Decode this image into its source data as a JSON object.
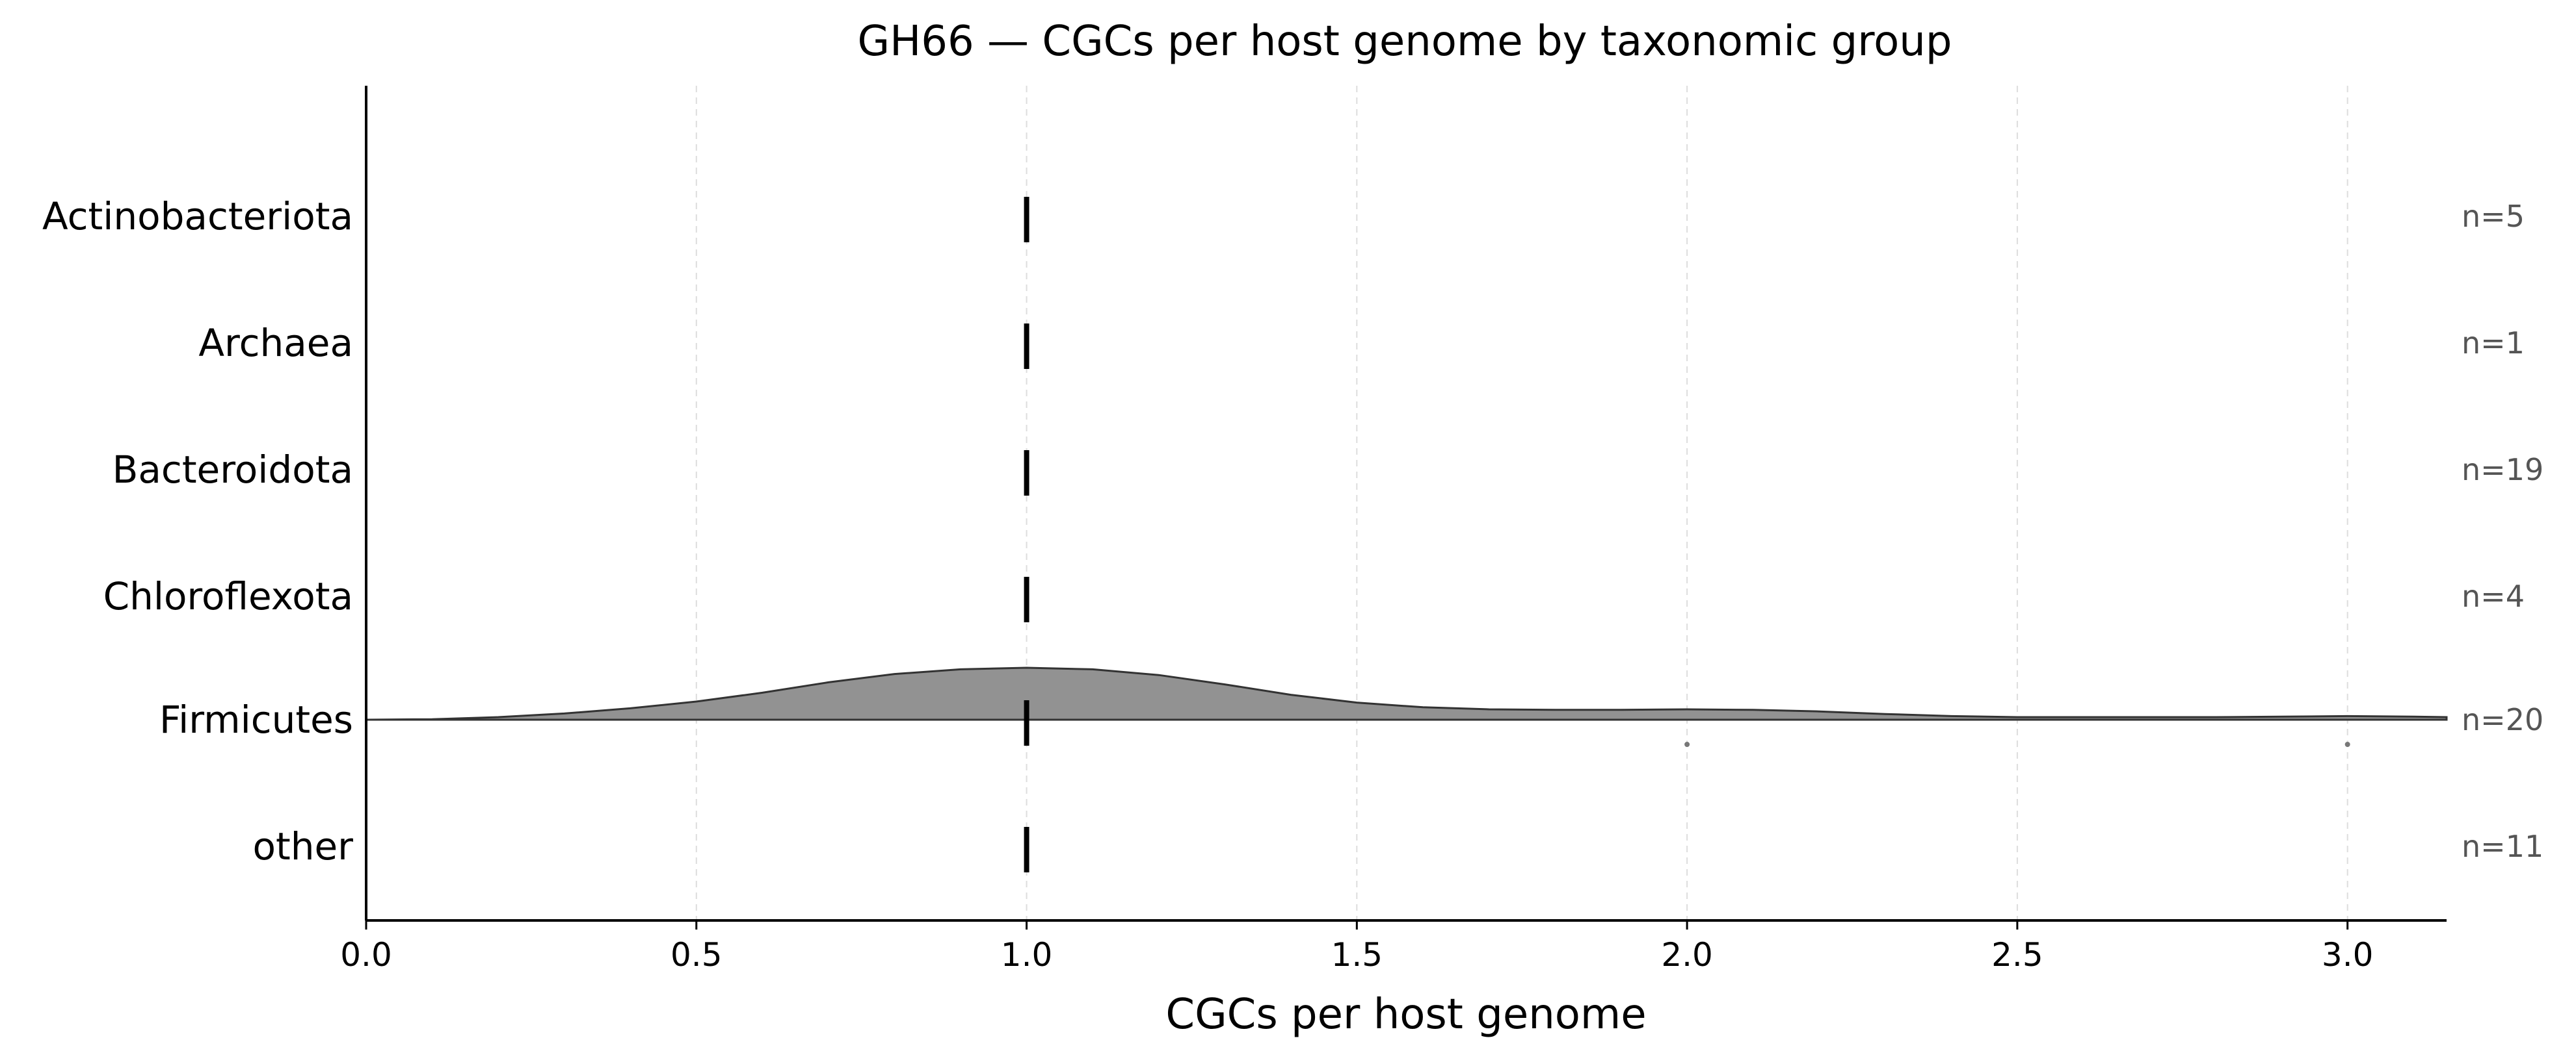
{
  "chart_data": {
    "type": "ridgeline",
    "title": "GH66 — CGCs per host genome by taxonomic group",
    "xlabel": "CGCs per host genome",
    "ylabel": "",
    "xlim": [
      0,
      3.15
    ],
    "xticks": [
      "0.0",
      "0.5",
      "1.0",
      "1.5",
      "2.0",
      "2.5",
      "3.0"
    ],
    "grid": "vertical dashed",
    "groups": [
      {
        "name": "Actinobacteriota",
        "n_label": "n=5",
        "median": 1.0
      },
      {
        "name": "Archaea",
        "n_label": "n=1",
        "median": 1.0
      },
      {
        "name": "Bacteroidota",
        "n_label": "n=19",
        "median": 1.0
      },
      {
        "name": "Chloroflexota",
        "n_label": "n=4",
        "median": 1.0
      },
      {
        "name": "Firmicutes",
        "n_label": "n=20",
        "median": 1.0,
        "density": {
          "x": [
            0,
            0.1,
            0.2,
            0.3,
            0.4,
            0.5,
            0.6,
            0.7,
            0.8,
            0.9,
            1.0,
            1.1,
            1.2,
            1.3,
            1.4,
            1.5,
            1.6,
            1.7,
            1.8,
            1.9,
            2.0,
            2.1,
            2.2,
            2.3,
            2.4,
            2.5,
            2.6,
            2.7,
            2.8,
            2.9,
            3.0,
            3.1,
            3.15
          ],
          "y": [
            0.0,
            0.01,
            0.05,
            0.12,
            0.22,
            0.35,
            0.52,
            0.72,
            0.88,
            0.97,
            1.0,
            0.97,
            0.86,
            0.68,
            0.48,
            0.33,
            0.24,
            0.2,
            0.19,
            0.19,
            0.2,
            0.19,
            0.16,
            0.11,
            0.07,
            0.05,
            0.05,
            0.05,
            0.05,
            0.06,
            0.07,
            0.06,
            0.05
          ]
        },
        "outliers": [
          2.0,
          3.0
        ]
      },
      {
        "name": "other",
        "n_label": "n=11",
        "median": 1.0
      }
    ],
    "colors": {
      "fill": "#929292",
      "outline": "#333333",
      "median": "#000000",
      "grid": "#dddddd"
    }
  }
}
